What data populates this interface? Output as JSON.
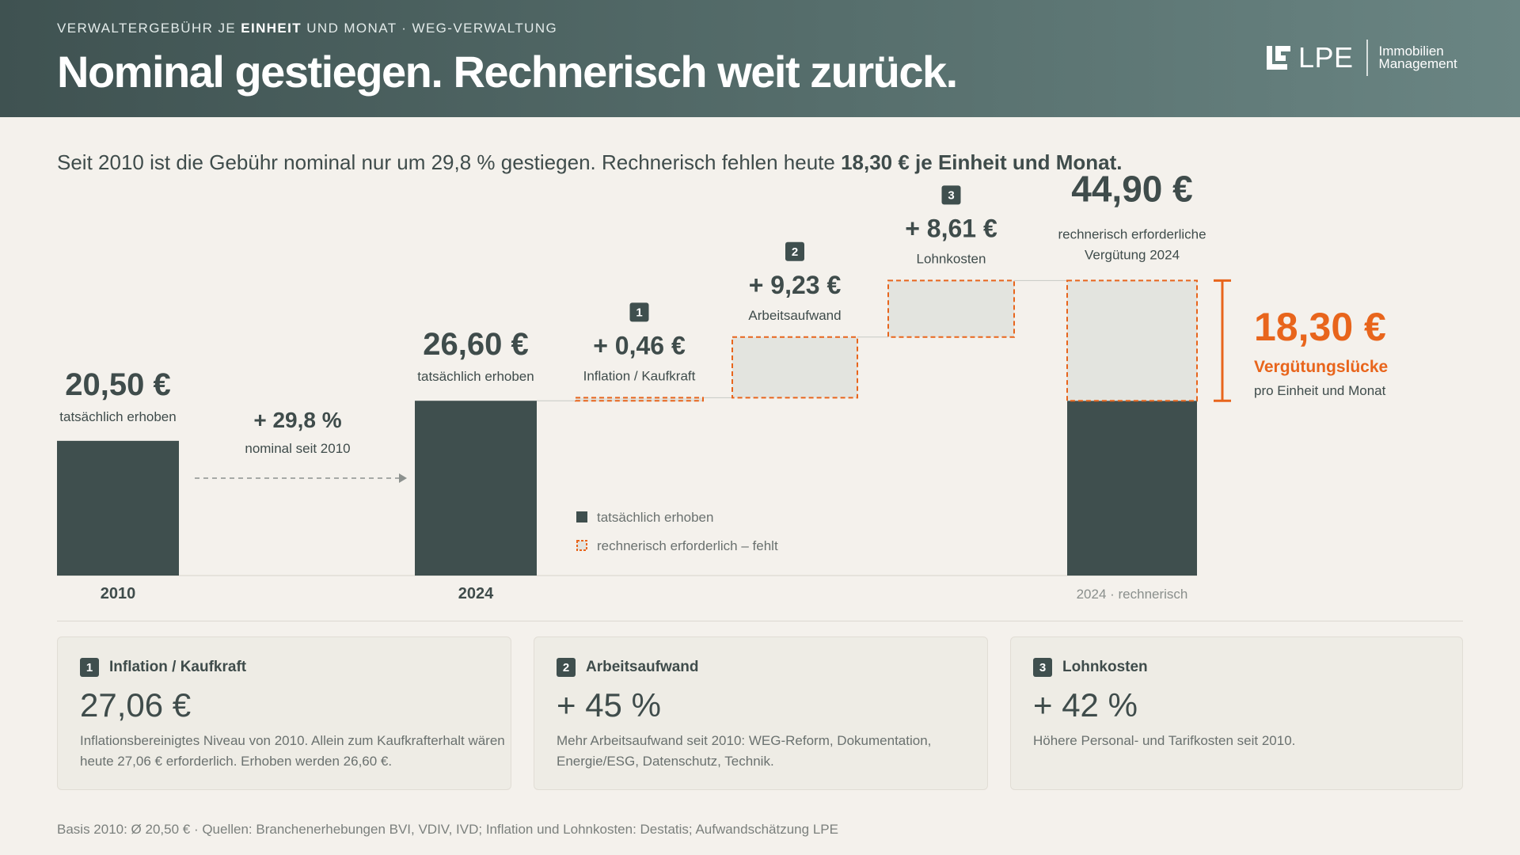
{
  "header": {
    "kicker_pre": "VERWALTERGEBÜHR JE ",
    "kicker_bold": "EINHEIT",
    "kicker_post": " UND MONAT · WEG-VERWALTUNG",
    "title": "Nominal gestiegen. Rechnerisch weit zurück.",
    "logo_name": "LPE",
    "logo_sub_1": "Immobilien",
    "logo_sub_2": "Management"
  },
  "subtitle": {
    "text": "Seit 2010 ist die Gebühr nominal nur um 29,8 % gestiegen. Rechnerisch fehlen heute ",
    "bold": "18,30 € je Einheit und Monat."
  },
  "colors": {
    "actual": "#3f4f4e",
    "missing_fill": "#e3e4df",
    "accent": "#e8651c",
    "text": "#3f4c4b",
    "muted": "#6a716f"
  },
  "chart_data": {
    "type": "waterfall",
    "ylim": [
      0,
      50
    ],
    "bars": [
      {
        "id": "2010",
        "category": "2010",
        "kind": "actual",
        "start": 0,
        "value": 20.5,
        "value_label": "20,50 €",
        "caption": "tatsächlich erhoben"
      },
      {
        "id": "2024",
        "category": "2024",
        "kind": "actual",
        "start": 0,
        "value": 26.6,
        "value_label": "26,60 €",
        "caption": "tatsächlich erhoben"
      },
      {
        "id": "step1",
        "category": "",
        "kind": "missing",
        "start": 26.6,
        "value": 0.46,
        "value_label": "+ 0,46 €",
        "caption": "Inflation / Kaufkraft",
        "badge": "1"
      },
      {
        "id": "step2",
        "category": "",
        "kind": "missing",
        "start": 27.06,
        "value": 9.23,
        "value_label": "+ 9,23 €",
        "caption": "Arbeitsaufwand",
        "badge": "2"
      },
      {
        "id": "step3",
        "category": "",
        "kind": "missing",
        "start": 36.29,
        "value": 8.61,
        "value_label": "+ 8,61 €",
        "caption": "Lohnkosten",
        "badge": "3"
      },
      {
        "id": "total",
        "category": "2024 · rechnerisch",
        "kind": "total",
        "start": 0,
        "value": 44.9,
        "actual": 26.6,
        "value_label": "44,90 €",
        "caption_1": "rechnerisch erforderliche",
        "caption_2": "Vergütung 2024"
      }
    ],
    "growth": {
      "label": "+ 29,8 %",
      "caption": "nominal seit 2010"
    },
    "gap": {
      "value": 18.3,
      "label": "18,30 €",
      "title": "Vergütungslücke",
      "caption": "pro Einheit und Monat"
    },
    "legend": [
      {
        "kind": "actual",
        "label": "tatsächlich erhoben"
      },
      {
        "kind": "missing",
        "label": "rechnerisch erforderlich – fehlt"
      }
    ]
  },
  "cards": [
    {
      "badge": "1",
      "title": "Inflation / Kaufkraft",
      "value": "27,06 €",
      "text": "Inflationsbereinigtes Niveau von 2010. Allein zum Kaufkrafterhalt wären heute 27,06 € erforderlich. Erhoben werden 26,60 €."
    },
    {
      "badge": "2",
      "title": "Arbeitsaufwand",
      "value": "+ 45 %",
      "text": "Mehr Arbeitsaufwand seit 2010: WEG-Reform, Dokumentation, Energie/ESG, Datenschutz, Technik."
    },
    {
      "badge": "3",
      "title": "Lohnkosten",
      "value": "+ 42 %",
      "text": "Höhere Personal- und Tarifkosten seit 2010."
    }
  ],
  "footnote": "Basis 2010: Ø 20,50 € · Quellen: Branchenerhebungen BVI, VDIV, IVD; Inflation und Lohnkosten: Destatis; Aufwandschätzung LPE"
}
